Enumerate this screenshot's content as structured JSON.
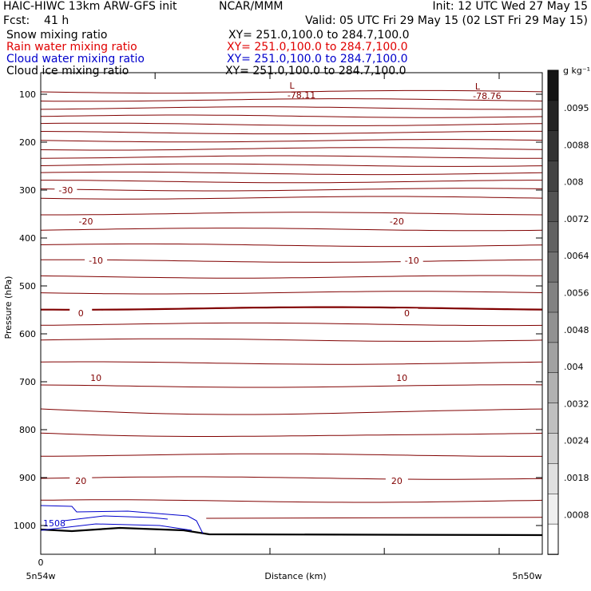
{
  "header": {
    "model": "HAIC-HIWC 13km ARW-GFS init",
    "org": "NCAR/MMM",
    "init": "Init: 12 UTC Wed 27 May 15",
    "fcst": "Fcst:    41 h",
    "valid": "Valid: 05 UTC Fri 29 May 15 (02 LST Fri 29 May 15)"
  },
  "fields": [
    {
      "label": "Snow mixing ratio",
      "xy": "XY= 251.0,100.0 to 284.7,100.0",
      "color": "#000000"
    },
    {
      "label": "Rain water mixing ratio",
      "xy": "XY= 251.0,100.0 to 284.7,100.0",
      "color": "#e00000"
    },
    {
      "label": "Cloud water mixing ratio",
      "xy": "XY= 251.0,100.0 to 284.7,100.0",
      "color": "#0000cc"
    },
    {
      "label": "Cloud ice mixing ratio",
      "xy": "XY= 251.0,100.0 to 284.7,100.0",
      "color": "#000000"
    }
  ],
  "chart_data": {
    "type": "line",
    "xlabel": "Distance (km)",
    "ylabel": "Pressure (hPa)",
    "yticks": [
      "100",
      "200",
      "300",
      "400",
      "500",
      "600",
      "700",
      "800",
      "900",
      "1000"
    ],
    "xtick_labels": [
      "0"
    ],
    "x_end_labels": [
      "5n54w",
      "5n50w"
    ],
    "ylim": [
      1060,
      80
    ],
    "contour_color": "#800000",
    "contour_labels": [
      {
        "text": "-30",
        "p": 300,
        "x": 0.05
      },
      {
        "text": "-20",
        "p": 365,
        "x": 0.09
      },
      {
        "text": "-20",
        "p": 365,
        "x": 0.71
      },
      {
        "text": "-10",
        "p": 447,
        "x": 0.11
      },
      {
        "text": "-10",
        "p": 447,
        "x": 0.74
      },
      {
        "text": "0",
        "p": 557,
        "x": 0.08
      },
      {
        "text": "0",
        "p": 557,
        "x": 0.73
      },
      {
        "text": "10",
        "p": 692,
        "x": 0.11
      },
      {
        "text": "10",
        "p": 692,
        "x": 0.72
      },
      {
        "text": "20",
        "p": 907,
        "x": 0.08
      },
      {
        "text": "20",
        "p": 907,
        "x": 0.71
      }
    ],
    "lows": [
      {
        "label": "L",
        "value": "-78.11",
        "x": 0.52,
        "p": 85
      },
      {
        "label": "L",
        "value": "-78.76",
        "x": 0.89,
        "p": 87
      }
    ],
    "cloud_label": "1508",
    "colorbar": {
      "unit": "g kg⁻¹",
      "labels": [
        ".0095",
        ".0088",
        ".008",
        ".0072",
        ".0064",
        ".0056",
        ".0048",
        ".004",
        ".0032",
        ".0024",
        ".0018",
        ".0008"
      ]
    }
  }
}
